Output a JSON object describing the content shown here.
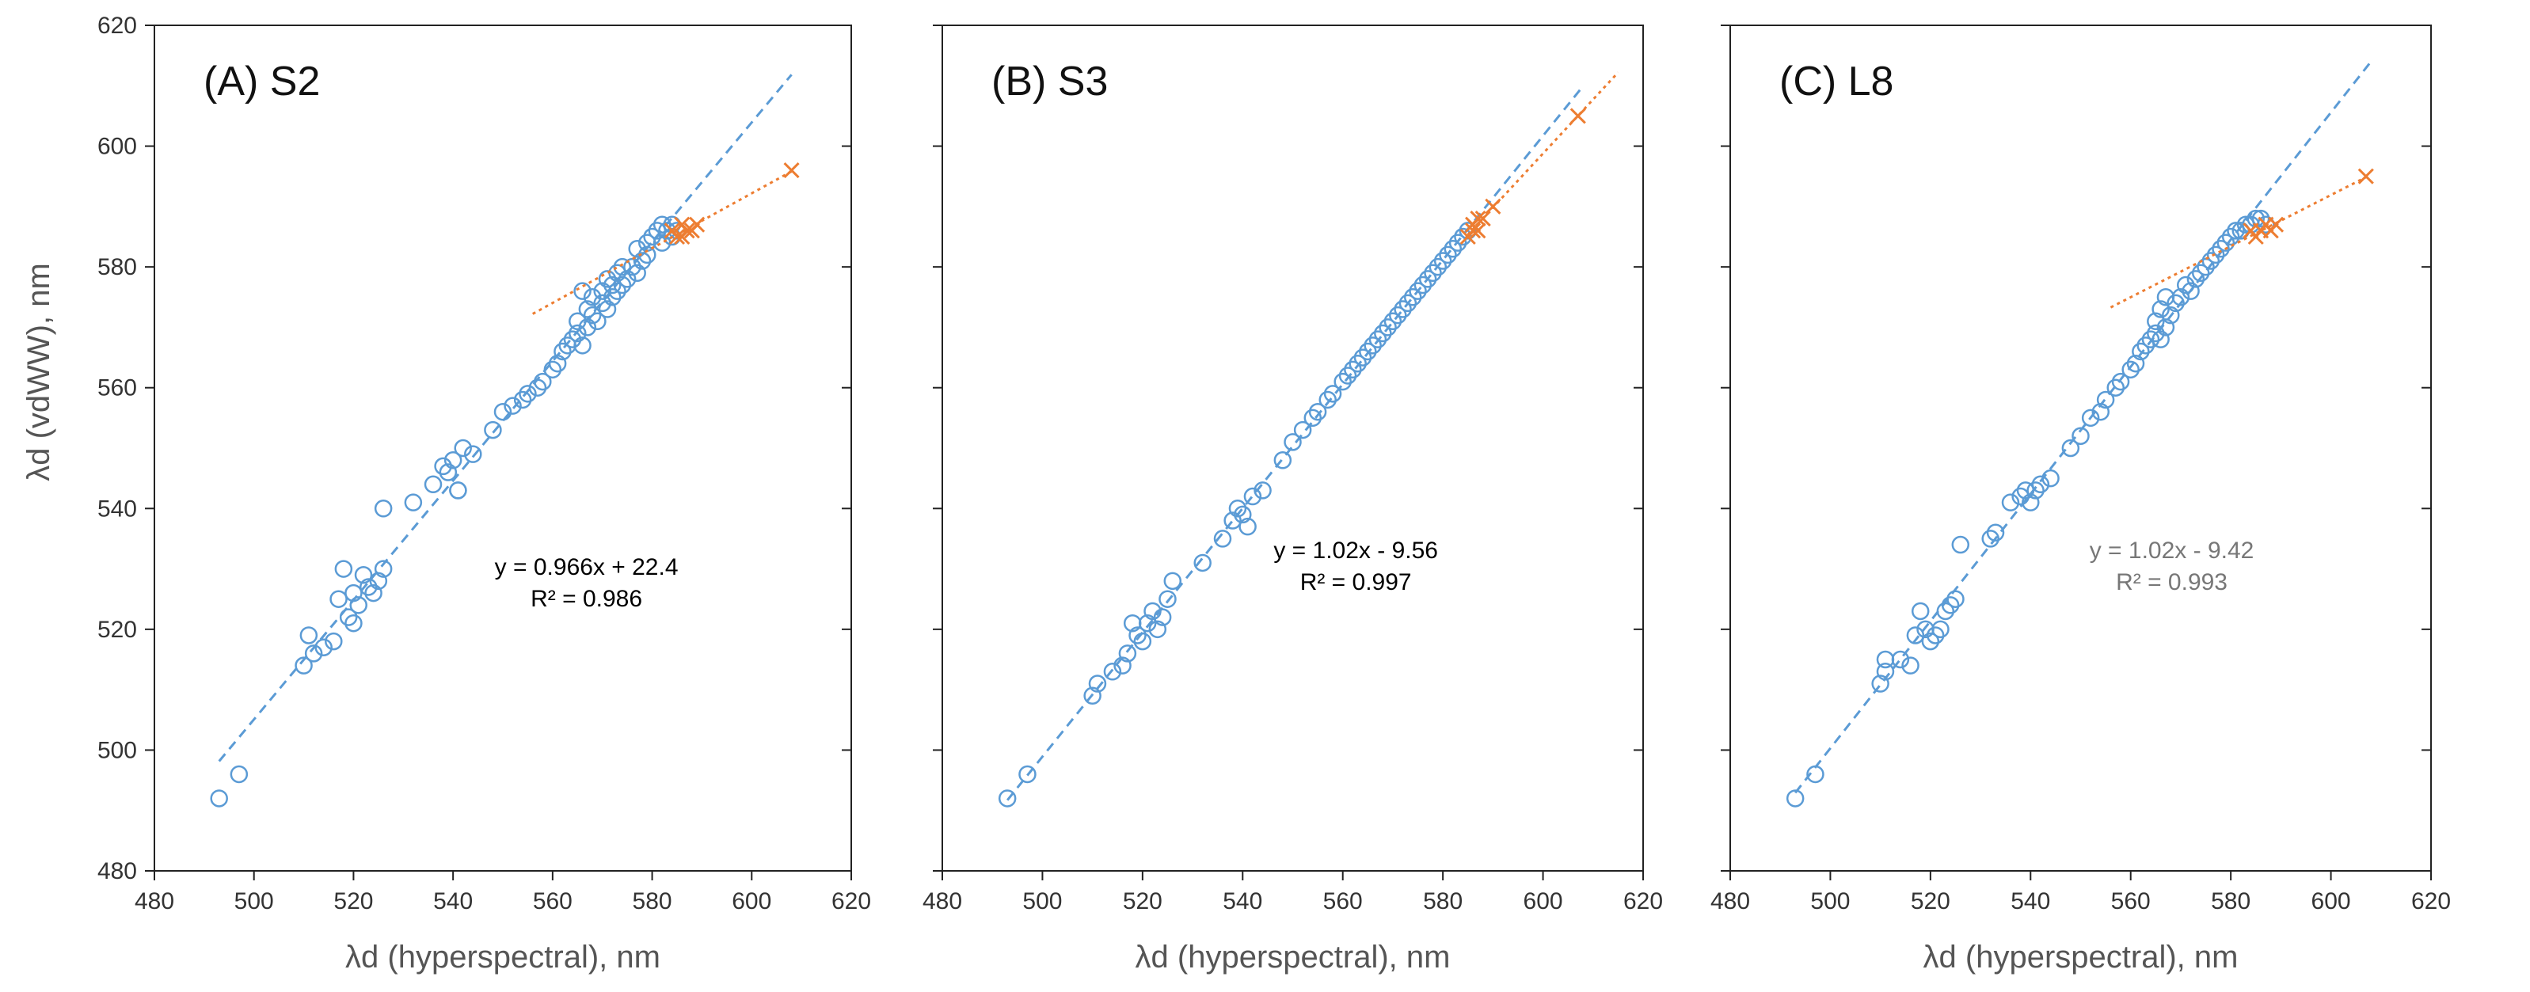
{
  "figure": {
    "y_axis_label": "λd (vdWW), nm",
    "x_axis_label": "λd (hyperspectral), nm",
    "x_ticks": [
      "480",
      "500",
      "520",
      "540",
      "560",
      "580",
      "600",
      "620"
    ],
    "y_ticks": [
      "480",
      "500",
      "520",
      "540",
      "560",
      "580",
      "600",
      "620"
    ]
  },
  "colors": {
    "blue": "#5B9BD5",
    "orange": "#ED7D31",
    "axis": "#222222"
  },
  "chart_data": [
    {
      "type": "scatter",
      "title": "(A) S2",
      "xlabel": "λd (hyperspectral), nm",
      "ylabel": "λd (vdWW), nm",
      "xlim": [
        480,
        620
      ],
      "ylim": [
        480,
        620
      ],
      "equation": "y = 0.966x + 22.4",
      "r2": "R² = 0.986",
      "equation_color": "#000000",
      "series": [
        {
          "name": "circles",
          "marker": "circle",
          "trend": "fit",
          "points": [
            [
              493,
              492
            ],
            [
              497,
              496
            ],
            [
              510,
              514
            ],
            [
              511,
              519
            ],
            [
              512,
              516
            ],
            [
              514,
              517
            ],
            [
              516,
              518
            ],
            [
              517,
              525
            ],
            [
              518,
              530
            ],
            [
              519,
              522
            ],
            [
              520,
              521
            ],
            [
              520,
              526
            ],
            [
              521,
              524
            ],
            [
              522,
              529
            ],
            [
              523,
              527
            ],
            [
              524,
              526
            ],
            [
              525,
              528
            ],
            [
              526,
              530
            ],
            [
              526,
              540
            ],
            [
              532,
              541
            ],
            [
              536,
              544
            ],
            [
              538,
              547
            ],
            [
              539,
              546
            ],
            [
              540,
              548
            ],
            [
              541,
              543
            ],
            [
              541,
              543
            ],
            [
              542,
              550
            ],
            [
              544,
              549
            ],
            [
              548,
              553
            ],
            [
              550,
              556
            ],
            [
              552,
              557
            ],
            [
              554,
              558
            ],
            [
              555,
              559
            ],
            [
              557,
              560
            ],
            [
              558,
              561
            ],
            [
              560,
              563
            ],
            [
              561,
              564
            ],
            [
              562,
              566
            ],
            [
              563,
              567
            ],
            [
              564,
              568
            ],
            [
              565,
              569
            ],
            [
              565,
              571
            ],
            [
              566,
              567
            ],
            [
              566,
              576
            ],
            [
              567,
              570
            ],
            [
              567,
              573
            ],
            [
              568,
              572
            ],
            [
              568,
              575
            ],
            [
              569,
              571
            ],
            [
              570,
              574
            ],
            [
              570,
              576
            ],
            [
              571,
              573
            ],
            [
              571,
              578
            ],
            [
              572,
              575
            ],
            [
              572,
              577
            ],
            [
              573,
              576
            ],
            [
              573,
              579
            ],
            [
              574,
              577
            ],
            [
              574,
              580
            ],
            [
              575,
              578
            ],
            [
              576,
              580
            ],
            [
              577,
              579
            ],
            [
              577,
              583
            ],
            [
              578,
              581
            ],
            [
              579,
              584
            ],
            [
              579,
              582
            ],
            [
              580,
              585
            ],
            [
              581,
              586
            ],
            [
              582,
              584
            ],
            [
              582,
              587
            ],
            [
              583,
              586
            ],
            [
              584,
              585
            ],
            [
              584,
              587
            ],
            [
              585,
              586
            ]
          ]
        },
        {
          "name": "crosses",
          "marker": "x",
          "trend": "fit",
          "points": [
            [
              584,
              586
            ],
            [
              585,
              585
            ],
            [
              586,
              585
            ],
            [
              586,
              587
            ],
            [
              587,
              586
            ],
            [
              588,
              586
            ],
            [
              589,
              587
            ],
            [
              608,
              596
            ]
          ]
        }
      ]
    },
    {
      "type": "scatter",
      "title": "(B) S3",
      "xlabel": "λd (hyperspectral), nm",
      "ylabel": "λd (vdWW), nm",
      "xlim": [
        480,
        620
      ],
      "ylim": [
        480,
        620
      ],
      "equation": "y = 1.02x - 9.56",
      "r2": "R² = 0.997",
      "equation_color": "#000000",
      "series": [
        {
          "name": "circles",
          "marker": "circle",
          "trend": "fit",
          "points": [
            [
              493,
              492
            ],
            [
              497,
              496
            ],
            [
              510,
              509
            ],
            [
              511,
              511
            ],
            [
              514,
              513
            ],
            [
              516,
              514
            ],
            [
              517,
              516
            ],
            [
              518,
              521
            ],
            [
              519,
              519
            ],
            [
              520,
              518
            ],
            [
              521,
              521
            ],
            [
              522,
              523
            ],
            [
              523,
              520
            ],
            [
              524,
              522
            ],
            [
              525,
              525
            ],
            [
              526,
              528
            ],
            [
              532,
              531
            ],
            [
              536,
              535
            ],
            [
              538,
              538
            ],
            [
              539,
              540
            ],
            [
              540,
              539
            ],
            [
              541,
              537
            ],
            [
              542,
              542
            ],
            [
              544,
              543
            ],
            [
              548,
              548
            ],
            [
              550,
              551
            ],
            [
              552,
              553
            ],
            [
              554,
              555
            ],
            [
              555,
              556
            ],
            [
              557,
              558
            ],
            [
              558,
              559
            ],
            [
              560,
              561
            ],
            [
              561,
              562
            ],
            [
              562,
              563
            ],
            [
              563,
              564
            ],
            [
              564,
              565
            ],
            [
              565,
              566
            ],
            [
              566,
              567
            ],
            [
              567,
              568
            ],
            [
              568,
              569
            ],
            [
              569,
              570
            ],
            [
              570,
              571
            ],
            [
              571,
              572
            ],
            [
              572,
              573
            ],
            [
              573,
              574
            ],
            [
              574,
              575
            ],
            [
              575,
              576
            ],
            [
              576,
              577
            ],
            [
              577,
              578
            ],
            [
              578,
              579
            ],
            [
              579,
              580
            ],
            [
              580,
              581
            ],
            [
              581,
              582
            ],
            [
              582,
              583
            ],
            [
              583,
              584
            ],
            [
              584,
              585
            ],
            [
              585,
              586
            ]
          ]
        },
        {
          "name": "crosses",
          "marker": "x",
          "trend": "fit",
          "points": [
            [
              585,
              585
            ],
            [
              586,
              586
            ],
            [
              586,
              587
            ],
            [
              587,
              586
            ],
            [
              587,
              588
            ],
            [
              588,
              588
            ],
            [
              590,
              590
            ],
            [
              607,
              605
            ]
          ]
        }
      ]
    },
    {
      "type": "scatter",
      "title": "(C) L8",
      "xlabel": "λd (hyperspectral), nm",
      "ylabel": "λd (vdWW), nm",
      "xlim": [
        480,
        620
      ],
      "ylim": [
        480,
        620
      ],
      "equation": "y = 1.02x - 9.42",
      "r2": "R² = 0.993",
      "equation_color": "#777777",
      "series": [
        {
          "name": "circles",
          "marker": "circle",
          "trend": "fit",
          "points": [
            [
              493,
              492
            ],
            [
              497,
              496
            ],
            [
              510,
              511
            ],
            [
              511,
              513
            ],
            [
              511,
              515
            ],
            [
              514,
              515
            ],
            [
              516,
              514
            ],
            [
              517,
              519
            ],
            [
              518,
              523
            ],
            [
              519,
              520
            ],
            [
              520,
              518
            ],
            [
              521,
              519
            ],
            [
              522,
              520
            ],
            [
              523,
              523
            ],
            [
              524,
              524
            ],
            [
              525,
              525
            ],
            [
              526,
              534
            ],
            [
              532,
              535
            ],
            [
              533,
              536
            ],
            [
              536,
              541
            ],
            [
              538,
              542
            ],
            [
              539,
              543
            ],
            [
              540,
              541
            ],
            [
              541,
              543
            ],
            [
              542,
              544
            ],
            [
              544,
              545
            ],
            [
              548,
              550
            ],
            [
              550,
              552
            ],
            [
              552,
              555
            ],
            [
              554,
              556
            ],
            [
              555,
              558
            ],
            [
              557,
              560
            ],
            [
              558,
              561
            ],
            [
              560,
              563
            ],
            [
              561,
              564
            ],
            [
              562,
              566
            ],
            [
              563,
              567
            ],
            [
              564,
              568
            ],
            [
              565,
              569
            ],
            [
              565,
              571
            ],
            [
              566,
              568
            ],
            [
              566,
              573
            ],
            [
              567,
              570
            ],
            [
              567,
              575
            ],
            [
              568,
              572
            ],
            [
              569,
              574
            ],
            [
              570,
              575
            ],
            [
              571,
              577
            ],
            [
              572,
              576
            ],
            [
              573,
              578
            ],
            [
              574,
              579
            ],
            [
              575,
              580
            ],
            [
              576,
              581
            ],
            [
              577,
              582
            ],
            [
              578,
              583
            ],
            [
              579,
              584
            ],
            [
              580,
              585
            ],
            [
              581,
              586
            ],
            [
              582,
              586
            ],
            [
              583,
              587
            ],
            [
              584,
              587
            ],
            [
              585,
              588
            ],
            [
              586,
              588
            ],
            [
              587,
              587
            ]
          ]
        },
        {
          "name": "crosses",
          "marker": "x",
          "trend": "fit",
          "points": [
            [
              584,
              586
            ],
            [
              585,
              585
            ],
            [
              586,
              586
            ],
            [
              587,
              587
            ],
            [
              588,
              586
            ],
            [
              589,
              587
            ],
            [
              607,
              595
            ]
          ]
        }
      ]
    }
  ]
}
